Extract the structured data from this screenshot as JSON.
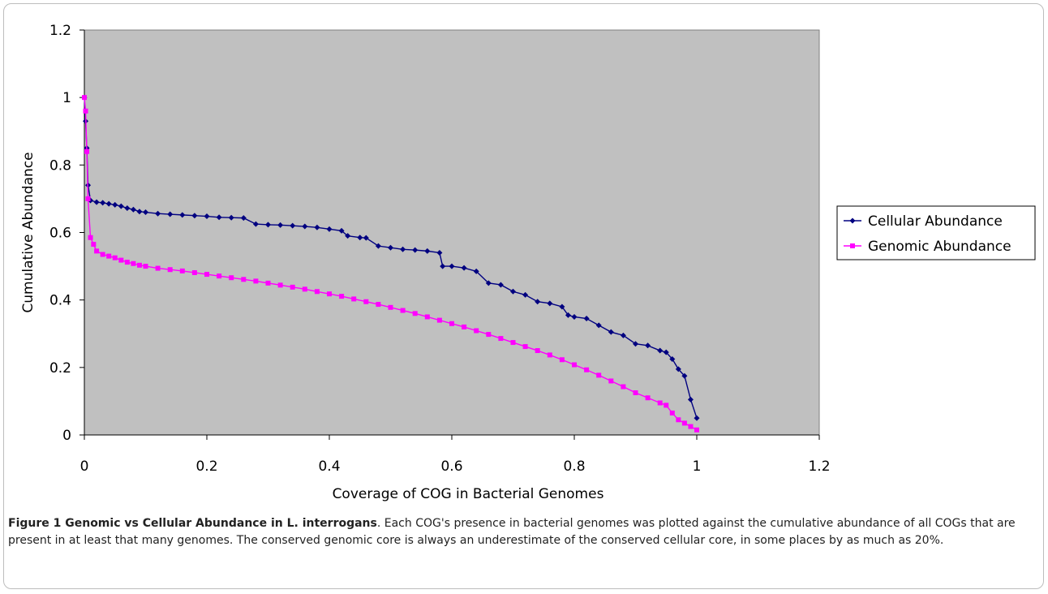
{
  "chart_data": {
    "type": "line",
    "title": "",
    "xlabel": "Coverage of COG in Bacterial Genomes",
    "ylabel": "Cumulative Abundance",
    "xlim": [
      0,
      1.2
    ],
    "ylim": [
      0,
      1.2
    ],
    "x_ticks": [
      "0",
      "0.2",
      "0.4",
      "0.6",
      "0.8",
      "1",
      "1.2"
    ],
    "y_ticks": [
      "0",
      "0.2",
      "0.4",
      "0.6",
      "0.8",
      "1",
      "1.2"
    ],
    "plot_background": "#c0c0c0",
    "grid": false,
    "legend_position": "right",
    "series": [
      {
        "name": "Cellular Abundance",
        "color": "#000080",
        "marker": "diamond",
        "points": [
          [
            0,
            1.0
          ],
          [
            0.002,
            0.93
          ],
          [
            0.004,
            0.85
          ],
          [
            0.006,
            0.74
          ],
          [
            0.01,
            0.695
          ],
          [
            0.02,
            0.69
          ],
          [
            0.03,
            0.688
          ],
          [
            0.04,
            0.685
          ],
          [
            0.05,
            0.682
          ],
          [
            0.06,
            0.678
          ],
          [
            0.07,
            0.672
          ],
          [
            0.08,
            0.668
          ],
          [
            0.09,
            0.662
          ],
          [
            0.1,
            0.66
          ],
          [
            0.12,
            0.656
          ],
          [
            0.14,
            0.654
          ],
          [
            0.16,
            0.652
          ],
          [
            0.18,
            0.65
          ],
          [
            0.2,
            0.648
          ],
          [
            0.22,
            0.645
          ],
          [
            0.24,
            0.644
          ],
          [
            0.26,
            0.643
          ],
          [
            0.28,
            0.625
          ],
          [
            0.3,
            0.623
          ],
          [
            0.32,
            0.622
          ],
          [
            0.34,
            0.62
          ],
          [
            0.36,
            0.618
          ],
          [
            0.38,
            0.615
          ],
          [
            0.4,
            0.61
          ],
          [
            0.42,
            0.605
          ],
          [
            0.43,
            0.59
          ],
          [
            0.45,
            0.585
          ],
          [
            0.46,
            0.584
          ],
          [
            0.48,
            0.56
          ],
          [
            0.5,
            0.555
          ],
          [
            0.52,
            0.55
          ],
          [
            0.54,
            0.548
          ],
          [
            0.56,
            0.545
          ],
          [
            0.58,
            0.54
          ],
          [
            0.585,
            0.5
          ],
          [
            0.6,
            0.5
          ],
          [
            0.62,
            0.495
          ],
          [
            0.64,
            0.485
          ],
          [
            0.66,
            0.45
          ],
          [
            0.68,
            0.445
          ],
          [
            0.7,
            0.425
          ],
          [
            0.72,
            0.415
          ],
          [
            0.74,
            0.395
          ],
          [
            0.76,
            0.39
          ],
          [
            0.78,
            0.38
          ],
          [
            0.79,
            0.355
          ],
          [
            0.8,
            0.35
          ],
          [
            0.82,
            0.345
          ],
          [
            0.84,
            0.325
          ],
          [
            0.86,
            0.305
          ],
          [
            0.88,
            0.295
          ],
          [
            0.9,
            0.27
          ],
          [
            0.92,
            0.265
          ],
          [
            0.94,
            0.25
          ],
          [
            0.95,
            0.245
          ],
          [
            0.96,
            0.225
          ],
          [
            0.97,
            0.195
          ],
          [
            0.98,
            0.175
          ],
          [
            0.99,
            0.105
          ],
          [
            1.0,
            0.05
          ]
        ]
      },
      {
        "name": "Genomic Abundance",
        "color": "#ff00ff",
        "marker": "square",
        "points": [
          [
            0,
            1.0
          ],
          [
            0.002,
            0.96
          ],
          [
            0.004,
            0.84
          ],
          [
            0.006,
            0.7
          ],
          [
            0.01,
            0.585
          ],
          [
            0.015,
            0.565
          ],
          [
            0.02,
            0.545
          ],
          [
            0.03,
            0.535
          ],
          [
            0.04,
            0.53
          ],
          [
            0.05,
            0.525
          ],
          [
            0.06,
            0.518
          ],
          [
            0.07,
            0.512
          ],
          [
            0.08,
            0.508
          ],
          [
            0.09,
            0.503
          ],
          [
            0.1,
            0.5
          ],
          [
            0.12,
            0.494
          ],
          [
            0.14,
            0.49
          ],
          [
            0.16,
            0.486
          ],
          [
            0.18,
            0.481
          ],
          [
            0.2,
            0.476
          ],
          [
            0.22,
            0.471
          ],
          [
            0.24,
            0.466
          ],
          [
            0.26,
            0.461
          ],
          [
            0.28,
            0.456
          ],
          [
            0.3,
            0.45
          ],
          [
            0.32,
            0.444
          ],
          [
            0.34,
            0.438
          ],
          [
            0.36,
            0.432
          ],
          [
            0.38,
            0.425
          ],
          [
            0.4,
            0.418
          ],
          [
            0.42,
            0.411
          ],
          [
            0.44,
            0.403
          ],
          [
            0.46,
            0.395
          ],
          [
            0.48,
            0.387
          ],
          [
            0.5,
            0.378
          ],
          [
            0.52,
            0.369
          ],
          [
            0.54,
            0.36
          ],
          [
            0.56,
            0.35
          ],
          [
            0.58,
            0.34
          ],
          [
            0.6,
            0.33
          ],
          [
            0.62,
            0.32
          ],
          [
            0.64,
            0.309
          ],
          [
            0.66,
            0.298
          ],
          [
            0.68,
            0.286
          ],
          [
            0.7,
            0.274
          ],
          [
            0.72,
            0.262
          ],
          [
            0.74,
            0.25
          ],
          [
            0.76,
            0.237
          ],
          [
            0.78,
            0.223
          ],
          [
            0.8,
            0.208
          ],
          [
            0.82,
            0.193
          ],
          [
            0.84,
            0.177
          ],
          [
            0.86,
            0.16
          ],
          [
            0.88,
            0.143
          ],
          [
            0.9,
            0.125
          ],
          [
            0.92,
            0.11
          ],
          [
            0.94,
            0.095
          ],
          [
            0.95,
            0.088
          ],
          [
            0.96,
            0.065
          ],
          [
            0.97,
            0.045
          ],
          [
            0.98,
            0.035
          ],
          [
            0.99,
            0.025
          ],
          [
            1.0,
            0.015
          ]
        ]
      }
    ]
  },
  "caption": {
    "label": "Figure 1 Genomic vs Cellular Abundance in L. interrogans",
    "text": ". Each COG's presence in bacterial genomes was plotted against the cumulative abundance of all COGs that are present in at least that many genomes. The conserved genomic core is always an underestimate of the conserved cellular core, in some places by as much as 20%."
  }
}
